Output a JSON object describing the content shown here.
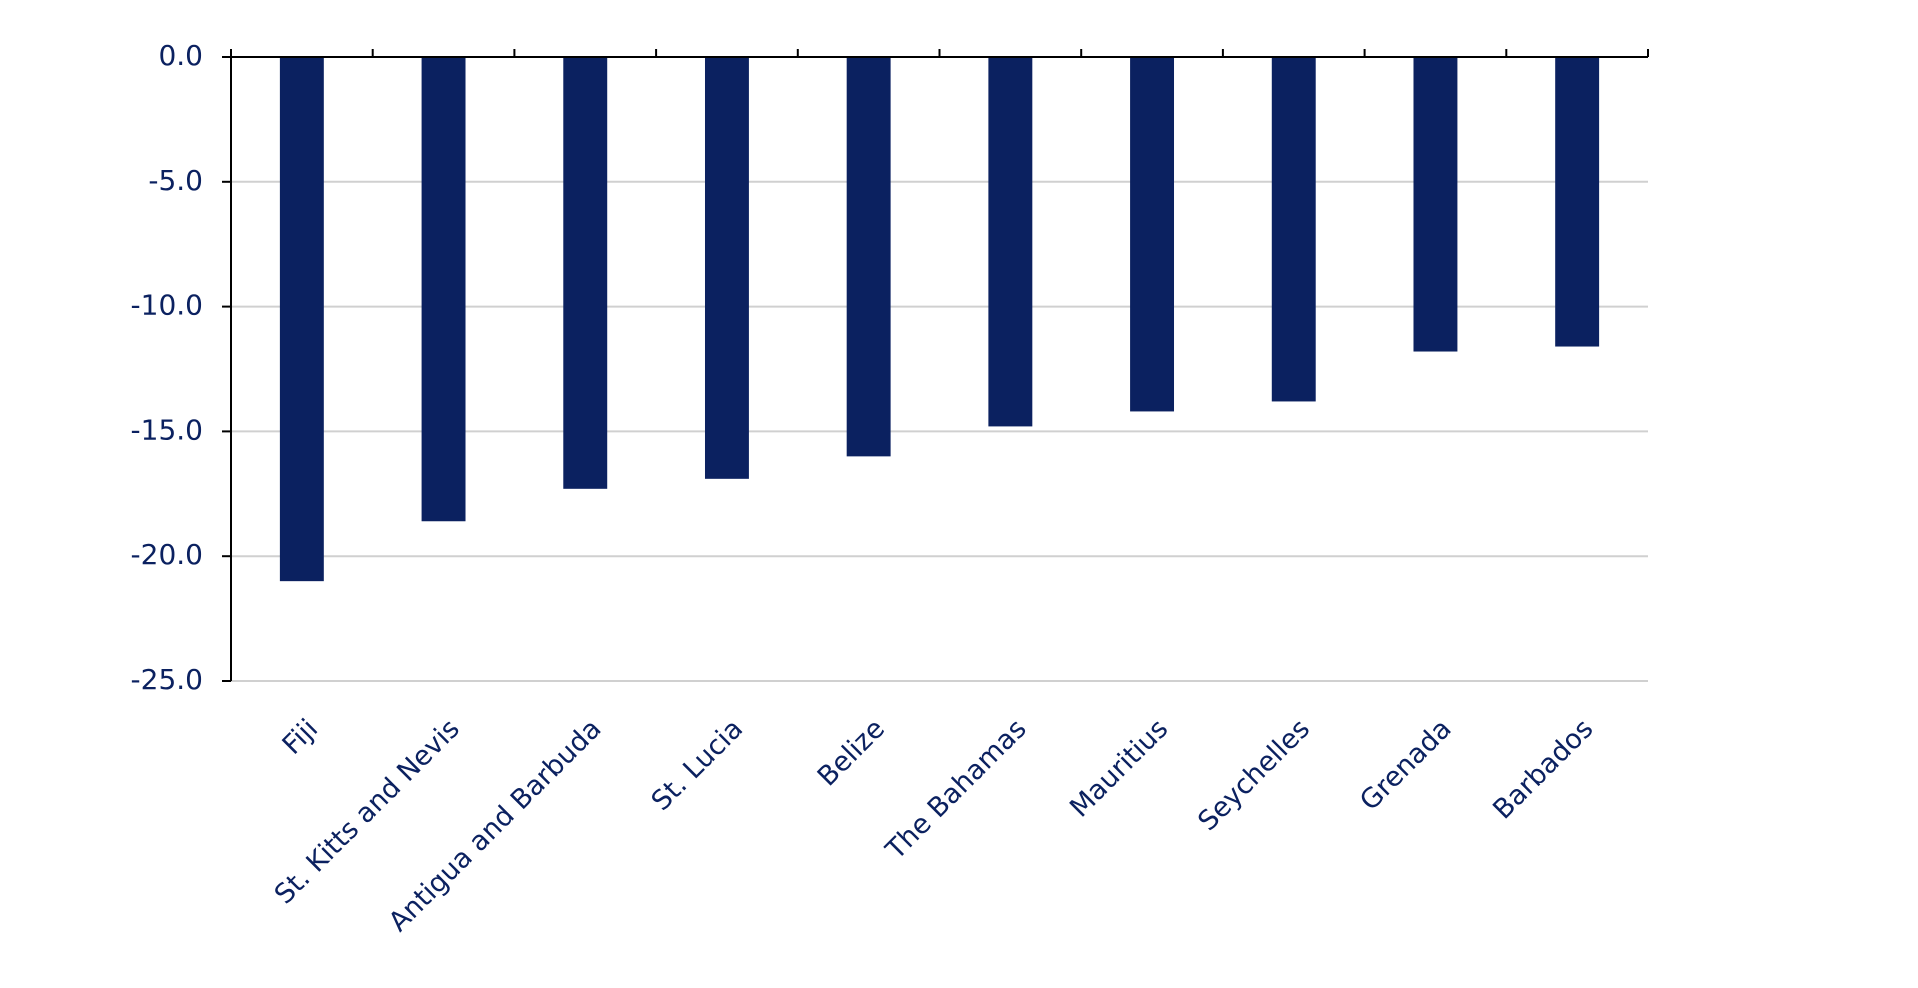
{
  "chart_data": {
    "type": "bar",
    "categories": [
      "Fiji",
      "St. Kitts and Nevis",
      "Antigua and Barbuda",
      "St. Lucia",
      "Belize",
      "The Bahamas",
      "Mauritius",
      "Seychelles",
      "Grenada",
      "Barbados"
    ],
    "values": [
      -21.0,
      -18.6,
      -17.3,
      -16.9,
      -16.0,
      -14.8,
      -14.2,
      -13.8,
      -11.8,
      -11.6
    ],
    "color": "#0b2160",
    "ylim": [
      -25,
      0
    ],
    "yticks": [
      {
        "value": 0,
        "label": "0.0"
      },
      {
        "value": -5,
        "label": "-5.0"
      },
      {
        "value": -10,
        "label": "-10.0"
      },
      {
        "value": -15,
        "label": "-15.0"
      },
      {
        "value": -20,
        "label": "-20.0"
      },
      {
        "value": -25,
        "label": "-25.0"
      }
    ],
    "grid": true
  }
}
